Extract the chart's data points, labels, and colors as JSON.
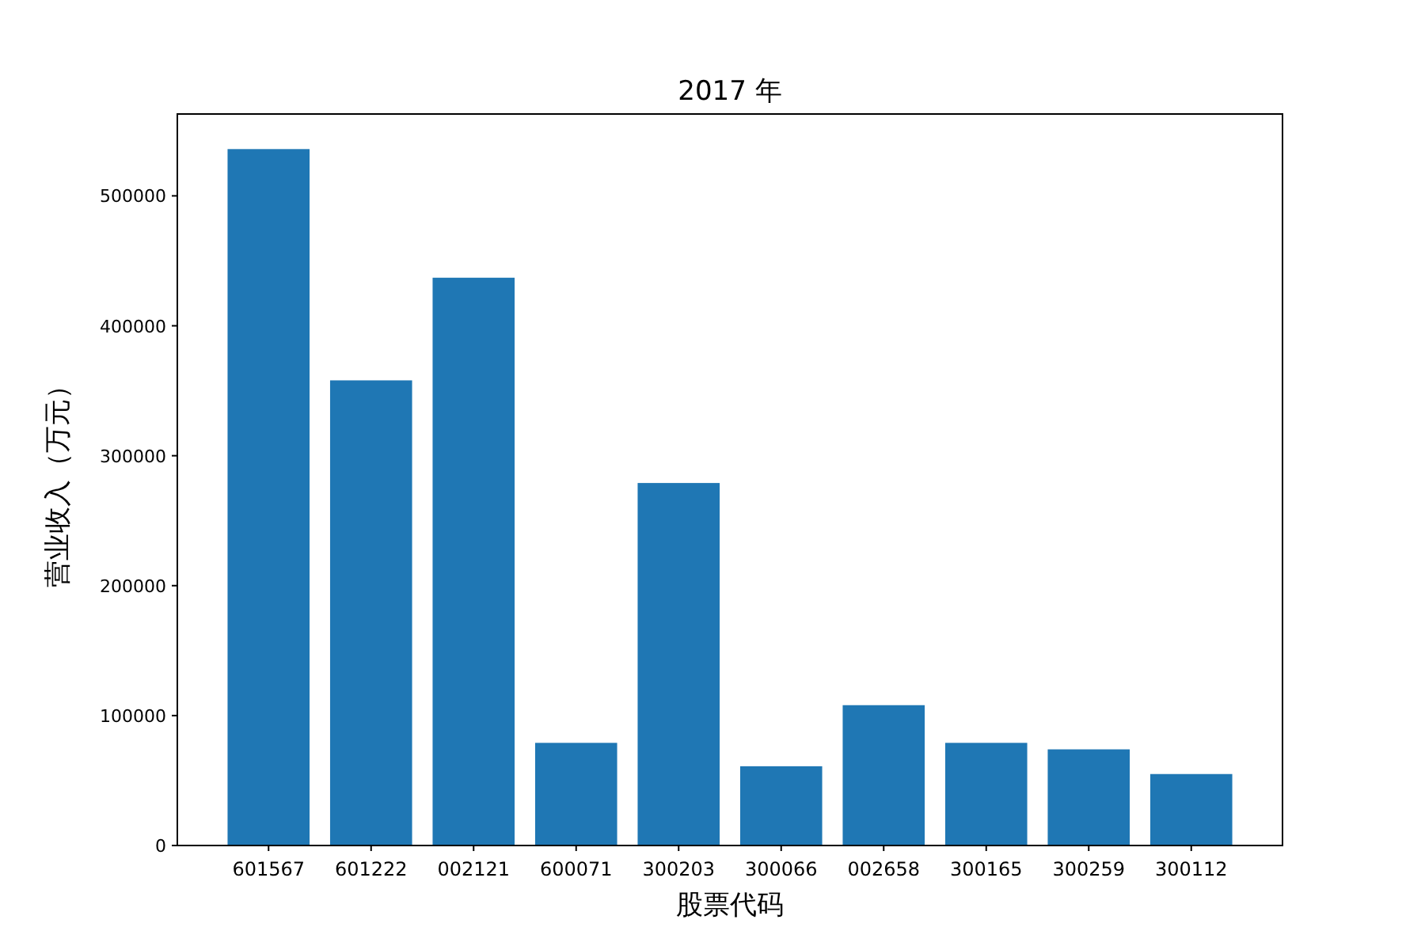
{
  "chart_data": {
    "type": "bar",
    "title": "2017 年",
    "xlabel": "股票代码",
    "ylabel": "营业收入（万元）",
    "categories": [
      "601567",
      "601222",
      "002121",
      "600071",
      "300203",
      "300066",
      "002658",
      "300165",
      "300259",
      "300112"
    ],
    "values": [
      536000,
      358000,
      437000,
      79000,
      279000,
      61000,
      108000,
      79000,
      74000,
      55000
    ],
    "color": "#1f77b4",
    "ylim": [
      0,
      563000
    ],
    "yticks": [
      0,
      100000,
      200000,
      300000,
      400000,
      500000
    ],
    "grid": false
  }
}
